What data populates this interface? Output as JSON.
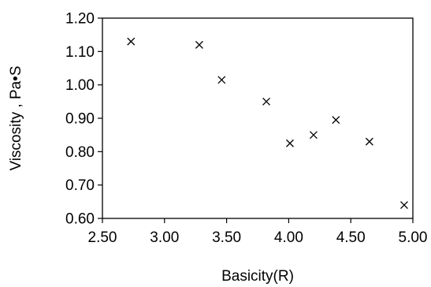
{
  "chart_data": {
    "type": "scatter",
    "title": "",
    "xlabel": "Basicity(R)",
    "ylabel": "Viscosity , Pa•S",
    "xlim": [
      2.5,
      5.0
    ],
    "ylim": [
      0.6,
      1.2
    ],
    "x_ticks": [
      "2.50",
      "3.00",
      "3.50",
      "4.00",
      "4.50",
      "5.00"
    ],
    "y_ticks": [
      "1.20",
      "1.10",
      "1.00",
      "0.90",
      "0.80",
      "0.70",
      "0.60"
    ],
    "grid": false,
    "legend": "none",
    "marker": "x",
    "series": [
      {
        "x": [
          2.73,
          3.28,
          3.46,
          3.82,
          4.01,
          4.2,
          4.38,
          4.65,
          4.93
        ],
        "y": [
          1.13,
          1.12,
          1.015,
          0.95,
          0.825,
          0.85,
          0.895,
          0.83,
          0.64
        ]
      }
    ],
    "colors": {
      "marker": "#000000",
      "axis": "#000000"
    }
  }
}
